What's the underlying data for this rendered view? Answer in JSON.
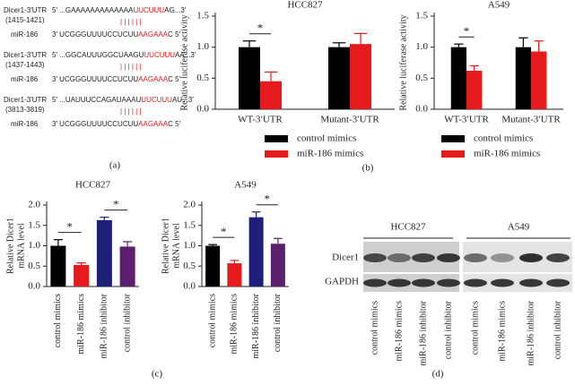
{
  "panel_labels": [
    "(a)",
    "(b)",
    "(c)",
    "(d)"
  ],
  "panel_a": {
    "rows": [
      {
        "target_label": "Dicer1-3′UTR",
        "target_range": "(1415-1421)",
        "target_prefix": "5′ ...GAAAAAAAAAAAAA",
        "target_match": "UUCUUU",
        "target_suffix": "AG...3′",
        "pairing": "||||||",
        "mir_label": "miR-186",
        "mir_prefix": "3′ UCGGGUUUUCCUCUU",
        "mir_match": "AAGAAA",
        "mir_suffix": "C 5′"
      },
      {
        "target_label": "Dicer1-3′UTR",
        "target_range": "(1437-1443)",
        "target_prefix": "5′ ...GGCAUUUGGCUAAGU",
        "target_match": "UUCUUU",
        "target_suffix": "AA...3′",
        "pairing": "||||||",
        "mir_label": "miR-186",
        "mir_prefix": "3′ UCGGGUUUUCCUCUU",
        "mir_match": "AAGAAA",
        "mir_suffix": "C 5′"
      },
      {
        "target_label": "Dicer1-3′UTR",
        "target_range": "(3813-3819)",
        "target_prefix": "5′ ...UAUUUCCAGAUAAAU",
        "target_match": "UUCUUU",
        "target_suffix": "AU...3′",
        "pairing": "||||||",
        "mir_label": "miR-186",
        "mir_prefix": "3′ UCGGGUUUUCCUCUU",
        "mir_match": "AAGAAA",
        "mir_suffix": "C 5′"
      }
    ]
  },
  "chart_data": [
    {
      "type": "bar",
      "title": "HCC827",
      "ylabel": [
        "Relative luciferase activity"
      ],
      "categories": [
        "WT-3′UTR",
        "Mutant-3′UTR"
      ],
      "series": [
        {
          "name": "control mimics",
          "color": "#000000",
          "values": [
            1.0,
            1.0
          ],
          "errors": [
            0.1,
            0.07
          ]
        },
        {
          "name": "miR-186 mimics",
          "color": "#e41a1c",
          "values": [
            0.45,
            1.05
          ],
          "errors": [
            0.15,
            0.17
          ]
        }
      ],
      "ylim": [
        0,
        1.5
      ],
      "yticks": [
        {
          "value": 0,
          "label": "0.0"
        },
        {
          "value": 0.5,
          "label": "0.5"
        },
        {
          "value": 1,
          "label": "1.0"
        },
        {
          "value": 1.5,
          "label": "1.5"
        }
      ],
      "significance": [
        "*"
      ]
    },
    {
      "type": "bar",
      "title": "A549",
      "ylabel": [
        "Relative luciferase activity"
      ],
      "categories": [
        "WT-3′UTR",
        "Mutant-3′UTR"
      ],
      "series": [
        {
          "name": "control mimics",
          "color": "#000000",
          "values": [
            1.0,
            1.0
          ],
          "errors": [
            0.05,
            0.15
          ]
        },
        {
          "name": "miR-186 mimics",
          "color": "#e41a1c",
          "values": [
            0.62,
            0.93
          ],
          "errors": [
            0.08,
            0.17
          ]
        }
      ],
      "ylim": [
        0,
        1.5
      ],
      "yticks": [
        {
          "value": 0,
          "label": "0.0"
        },
        {
          "value": 0.5,
          "label": "0.5"
        },
        {
          "value": 1,
          "label": "1.0"
        },
        {
          "value": 1.5,
          "label": "1.5"
        }
      ],
      "significance": [
        "*"
      ]
    },
    {
      "type": "bar",
      "title": "HCC827",
      "ylabel": [
        "Relative Dicer1",
        "mRNA level"
      ],
      "categories": [
        "control mimics",
        "miR-186 mimics",
        "miR-186 inhibitor",
        "control inhibitor"
      ],
      "values": [
        1.0,
        0.53,
        1.63,
        0.98
      ],
      "errors": [
        0.15,
        0.05,
        0.07,
        0.12
      ],
      "colors": [
        "#000000",
        "#e41a1c",
        "#1f1f7a",
        "#5b1f6e"
      ],
      "ylim": [
        0,
        2
      ],
      "yticks": [
        {
          "value": 0,
          "label": "0.0"
        },
        {
          "value": 0.5,
          "label": "0.5"
        },
        {
          "value": 1,
          "label": "1.0"
        },
        {
          "value": 1.5,
          "label": "1.5"
        },
        {
          "value": 2,
          "label": "2.0"
        }
      ],
      "significance": [
        "*",
        "*"
      ]
    },
    {
      "type": "bar",
      "title": "A549",
      "ylabel": [
        "Relative Dicer1",
        "mRNA level"
      ],
      "categories": [
        "control mimics",
        "miR-186 mimics",
        "miR-186 inhibitor",
        "control inhibitor"
      ],
      "values": [
        1.0,
        0.57,
        1.7,
        1.05
      ],
      "errors": [
        0.03,
        0.07,
        0.13,
        0.13
      ],
      "colors": [
        "#000000",
        "#e41a1c",
        "#1f1f7a",
        "#5b1f6e"
      ],
      "ylim": [
        0,
        2
      ],
      "yticks": [
        {
          "value": 0,
          "label": "0.0"
        },
        {
          "value": 0.5,
          "label": "0.5"
        },
        {
          "value": 1,
          "label": "1.0"
        },
        {
          "value": 1.5,
          "label": "1.5"
        },
        {
          "value": 2,
          "label": "2.0"
        }
      ],
      "significance": [
        "*",
        "*"
      ]
    }
  ],
  "panel_d": {
    "groups": [
      "HCC827",
      "A549"
    ],
    "rows": [
      "Dicer1",
      "GAPDH"
    ],
    "lanes": [
      "control mimics",
      "miR-186 mimics",
      "miR-186 inhibitor",
      "control inhibitor",
      "control mimics",
      "miR-186 mimics",
      "miR-186 inhibitor",
      "control inhibitor"
    ]
  }
}
